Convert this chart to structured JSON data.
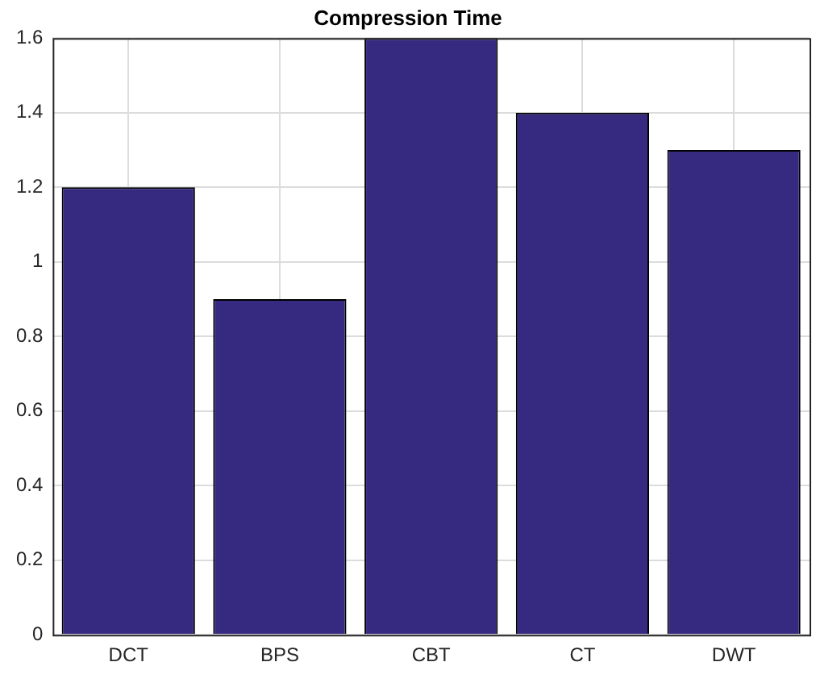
{
  "chart_data": {
    "type": "bar",
    "title": "Compression Time",
    "categories": [
      "DCT",
      "BPS",
      "CBT",
      "CT",
      "DWT"
    ],
    "values": [
      1.2,
      0.9,
      1.6,
      1.4,
      1.3
    ],
    "color": "#362a80",
    "ylim": [
      0,
      1.6
    ],
    "yticks": [
      0,
      0.2,
      0.4,
      0.6,
      0.8,
      1,
      1.2,
      1.4,
      1.6
    ],
    "grid": true
  }
}
